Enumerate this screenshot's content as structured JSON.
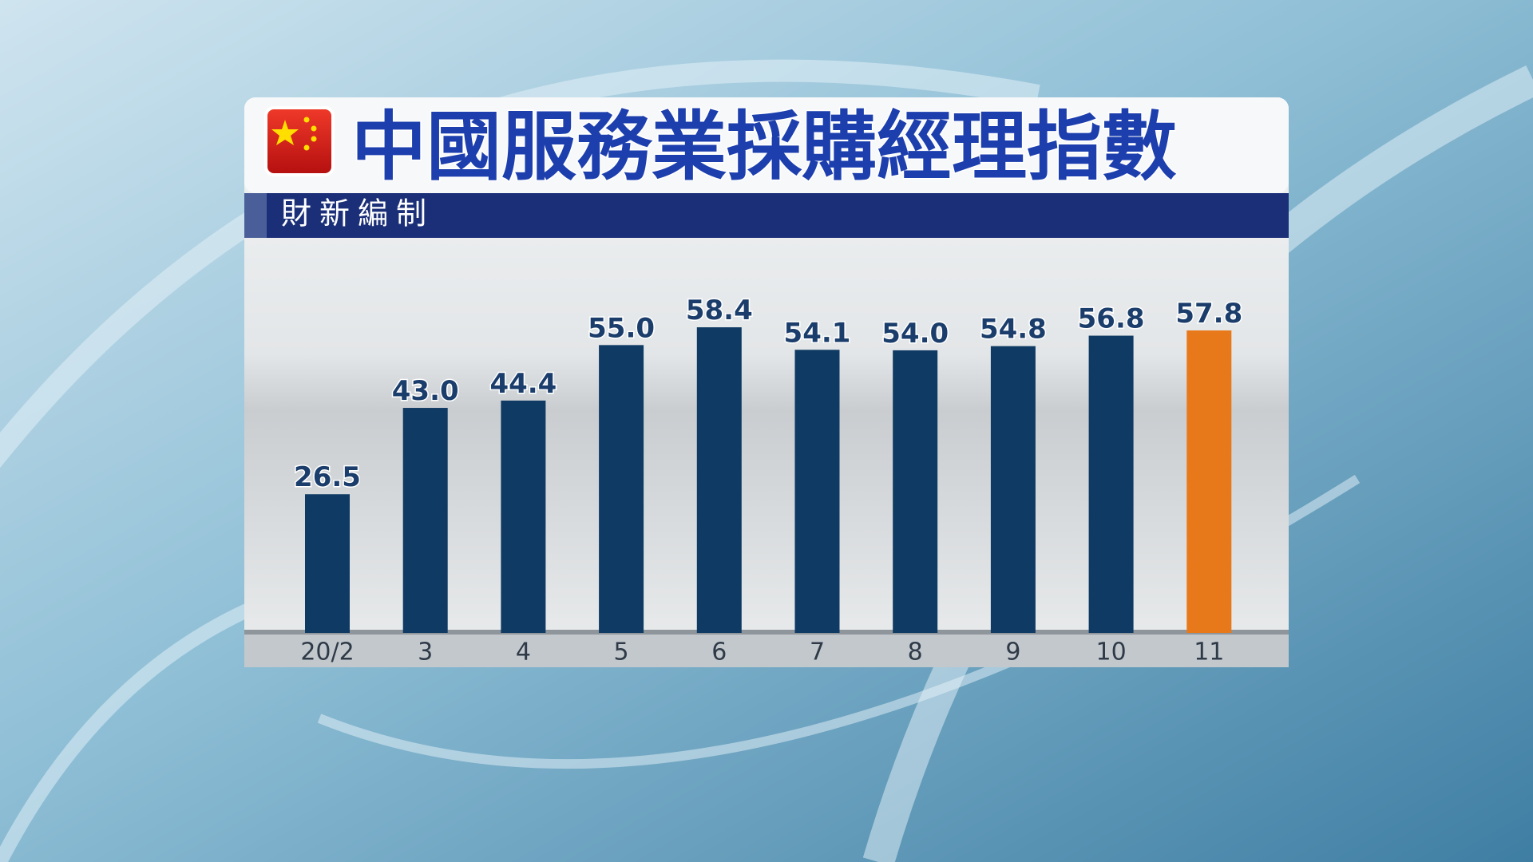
{
  "chart_data": {
    "type": "bar",
    "title": "中國服務業採購經理指數",
    "subtitle": "財新編制",
    "categories": [
      "20/2",
      "3",
      "4",
      "5",
      "6",
      "7",
      "8",
      "9",
      "10",
      "11"
    ],
    "values": [
      26.5,
      43,
      44.4,
      55,
      58.4,
      54.1,
      54,
      54.8,
      56.8,
      57.8
    ],
    "value_labels": [
      "26.5",
      "43.0",
      "44.4",
      "55.0",
      "58.4",
      "54.1",
      "54.0",
      "54.8",
      "56.8",
      "57.8"
    ],
    "colors": [
      "#0f3a63",
      "#0f3a63",
      "#0f3a63",
      "#0f3a63",
      "#0f3a63",
      "#0f3a63",
      "#0f3a63",
      "#0f3a63",
      "#0f3a63",
      "#e8791a"
    ],
    "ylim": [
      0,
      70
    ]
  }
}
